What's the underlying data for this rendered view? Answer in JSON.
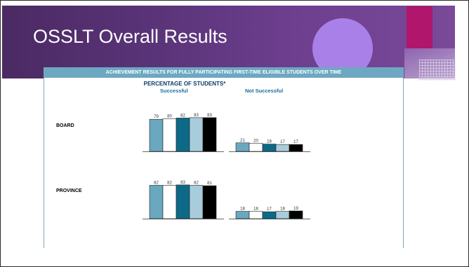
{
  "slide": {
    "title": "OSSLT Overall Results"
  },
  "chart_data": {
    "type": "bar",
    "title": "ACHIEVEMENT RESULTS FOR FULLY PARTICIPATING FIRST-TIME ELIGIBLE STUDENTS OVER TIME",
    "subtitle": "PERCENTAGE OF STUDENTS*",
    "groups": [
      "Successful",
      "Not Successful"
    ],
    "series_colors": [
      "#6aa8c0",
      "#ffffff",
      "#0c6a88",
      "#a9ccdb",
      "#000000"
    ],
    "rows": [
      {
        "name": "BOARD",
        "successful": [
          79,
          80,
          82,
          83,
          83
        ],
        "not_successful": [
          21,
          20,
          18,
          17,
          17
        ]
      },
      {
        "name": "PROVINCE",
        "successful": [
          82,
          82,
          83,
          82,
          81
        ],
        "not_successful": [
          18,
          18,
          17,
          18,
          19
        ]
      }
    ],
    "ylim": [
      0,
      100
    ]
  }
}
